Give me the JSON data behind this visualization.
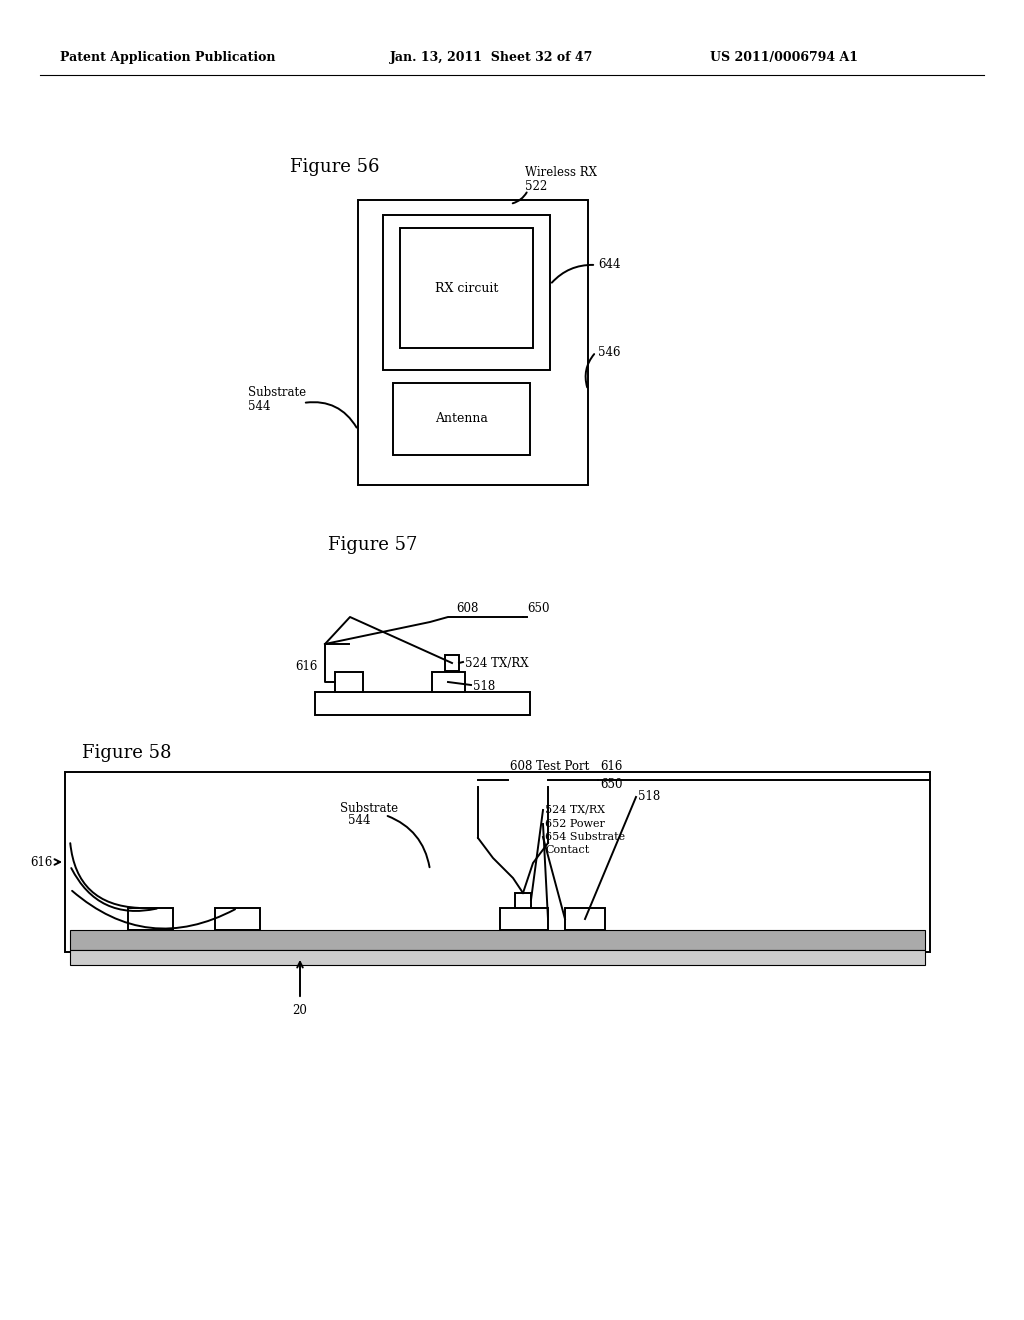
{
  "header_left": "Patent Application Publication",
  "header_mid": "Jan. 13, 2011  Sheet 32 of 47",
  "header_right": "US 2011/0006794 A1",
  "fig56_title": "Figure 56",
  "fig57_title": "Figure 57",
  "fig58_title": "Figure 58",
  "bg_color": "#ffffff",
  "line_color": "#000000",
  "text_color": "#000000"
}
